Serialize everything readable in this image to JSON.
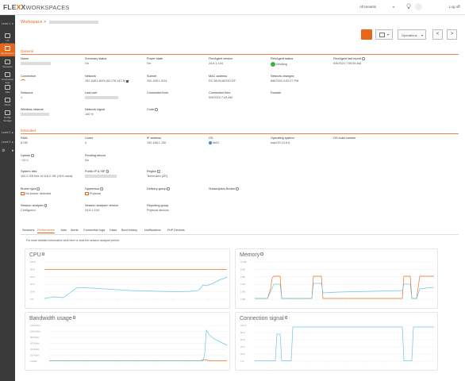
{
  "header": {
    "logo_prefix": "FLE",
    "logo_x": "X",
    "logo_suffix": "X",
    "logo_ws": "WORKSPACES",
    "tenant": "All tenants",
    "logoff": "Log off"
  },
  "sidebar": {
    "levels": [
      {
        "label": "Level 1"
      },
      {
        "label": "Level 2"
      },
      {
        "label": "Level 3"
      }
    ],
    "items": [
      {
        "label": "UX Dashboard"
      },
      {
        "label": "Workspaces"
      },
      {
        "label": "Sessions"
      },
      {
        "label": "Connection logs"
      },
      {
        "label": "Jobs"
      },
      {
        "label": "Alerts"
      },
      {
        "label": "Profile Storage"
      }
    ]
  },
  "breadcrumb": {
    "root": "Workspace",
    "sep": ">"
  },
  "actions": {
    "operations": "Operations",
    "prev": "<",
    "next": ">"
  },
  "general": {
    "title": "General",
    "fields": [
      {
        "label": "Name",
        "value": ""
      },
      {
        "label": "Summary status",
        "value": "On"
      },
      {
        "label": "Power state",
        "value": "On"
      },
      {
        "label": "FlexAgent version",
        "value": "24.8.1.104"
      },
      {
        "label": "FlexAgent status",
        "value": "Working"
      },
      {
        "label": "FlexAgent last report",
        "value": "9/9/2024 7:59:59 AM"
      },
      {
        "label": "Connection",
        "value": ""
      },
      {
        "label": "Network",
        "value": "192.168.1.8/24 (82.176.147.8)"
      },
      {
        "label": "Subnet",
        "value": "192.168.1.0/24"
      },
      {
        "label": "MAC address",
        "value": "DC:98:04:80:DD:DF"
      },
      {
        "label": "Network changed",
        "value": "8/8/2024 4:02:07 PM"
      },
      {
        "label": "Sessions",
        "value": "1"
      },
      {
        "label": "Last user",
        "value": ""
      },
      {
        "label": "Connected from",
        "value": ""
      },
      {
        "label": "Connection time",
        "value": "9/9/2024 7:44 AM"
      },
      {
        "label": "Domain",
        "value": ""
      },
      {
        "label": "Wireless network",
        "value": ""
      },
      {
        "label": "Network signal",
        "value": "100 %"
      },
      {
        "label": "Code",
        "value": ""
      }
    ]
  },
  "extended": {
    "title": "Extended",
    "fields": [
      {
        "label": "RAM",
        "value": "8 GB"
      },
      {
        "label": "Cores",
        "value": "4"
      },
      {
        "label": "IP address",
        "value": "192.168.1.130"
      },
      {
        "label": "OS",
        "value": "MAC"
      },
      {
        "label": "Operating system",
        "value": "macOS 13.6.6"
      },
      {
        "label": "OS build number",
        "value": ""
      },
      {
        "label": "Uptime",
        "value": "~22 h"
      },
      {
        "label": "Pending reboot",
        "value": "No"
      },
      {
        "label": "System disk",
        "value": "100.2 GB free of 118.2 GB (15% used)"
      },
      {
        "label": "Public IP & ISP",
        "value": ""
      },
      {
        "label": "Region",
        "value": "Terneuzen (ZE)"
      },
      {
        "label": "Broker type",
        "value": "No broker detected"
      },
      {
        "label": "Hypervisor",
        "value": "Physical"
      },
      {
        "label": "Delivery group",
        "value": ""
      },
      {
        "label": "Subscription Broker",
        "value": ""
      },
      {
        "label": "Session analyzer",
        "value": "Configured"
      },
      {
        "label": "Session analyzer version",
        "value": "24.8.1.104"
      },
      {
        "label": "Reporting group",
        "value": "Physical devices"
      }
    ]
  },
  "tabs": [
    {
      "label": "Sessions"
    },
    {
      "label": "Performance"
    },
    {
      "label": "Jobs"
    },
    {
      "label": "Alerts"
    },
    {
      "label": "Connection logs"
    },
    {
      "label": "Disks"
    },
    {
      "label": "Boot history"
    },
    {
      "label": "Notifications"
    },
    {
      "label": "PnP Devices"
    }
  ],
  "tab_hint": "For more detailed information click here or click the session analyzer period",
  "colors": {
    "accent": "#e8661a",
    "line_blue": "#6ec6e8",
    "line_orange": "#f0731f",
    "green": "#3cb043"
  },
  "charts": [
    {
      "title": "CPU",
      "yticks": [
        "100 %",
        "80 %",
        "60 %",
        "40 %",
        "20 %",
        "0 %"
      ]
    },
    {
      "title": "Memory",
      "yticks": [
        "10 GB",
        "8 GB",
        "6 GB",
        "4 GB",
        "2 GB",
        "0 GB"
      ]
    },
    {
      "title": "Bandwidth usage",
      "yticks": [
        "1200 Kbit/s",
        "1000 Kbit/s",
        "800 Kbit/s",
        "600 Kbit/s",
        "400 Kbit/s",
        "200 Kbit/s",
        "0 Kbit/s"
      ]
    },
    {
      "title": "Connection signal",
      "yticks": [
        "100 %",
        "80 %",
        "60 %",
        "40 %",
        "20 %",
        "0 %"
      ]
    }
  ]
}
